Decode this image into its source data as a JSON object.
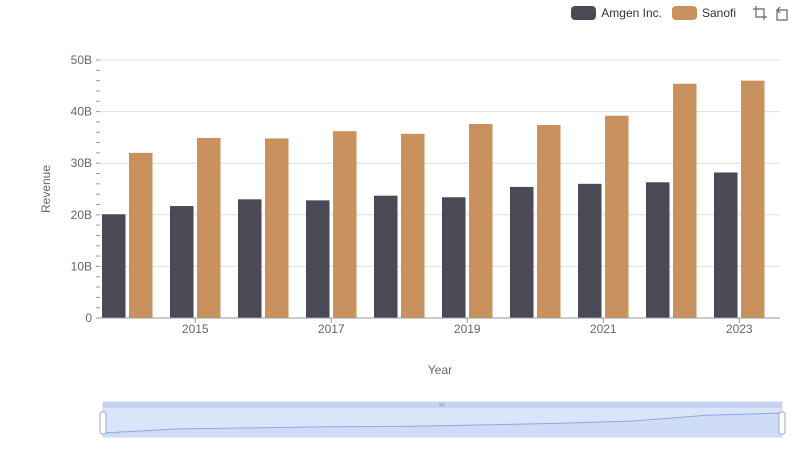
{
  "chart_data": {
    "type": "bar",
    "title": "",
    "xlabel": "Year",
    "ylabel": "Revenue",
    "ylim": [
      0,
      50000000000
    ],
    "y_ticks": [
      "0",
      "10B",
      "20B",
      "30B",
      "40B",
      "50B"
    ],
    "x_ticks": [
      "2015",
      "2017",
      "2019",
      "2021",
      "2023"
    ],
    "categories": [
      "2014",
      "2015",
      "2016",
      "2017",
      "2018",
      "2019",
      "2020",
      "2021",
      "2022",
      "2023"
    ],
    "series": [
      {
        "name": "Amgen Inc.",
        "color": "#4a4a56",
        "values": [
          20100000000,
          21700000000,
          23000000000,
          22800000000,
          23700000000,
          23400000000,
          25400000000,
          26000000000,
          26300000000,
          28200000000
        ]
      },
      {
        "name": "Sanofi",
        "color": "#c8915d",
        "values": [
          32000000000,
          34900000000,
          34800000000,
          36200000000,
          35700000000,
          37600000000,
          37400000000,
          39200000000,
          45400000000,
          46000000000
        ]
      }
    ],
    "grid": true,
    "legend_position": "top-right"
  },
  "legend": [
    {
      "label": "Amgen Inc.",
      "color": "#4a4a56"
    },
    {
      "label": "Sanofi",
      "color": "#c8915d"
    }
  ],
  "toolbar": {
    "zoom_icon": "zoom-rect-icon",
    "reset_icon": "zoom-reset-icon"
  },
  "slider": {
    "range_start": 0,
    "range_end": 1
  }
}
